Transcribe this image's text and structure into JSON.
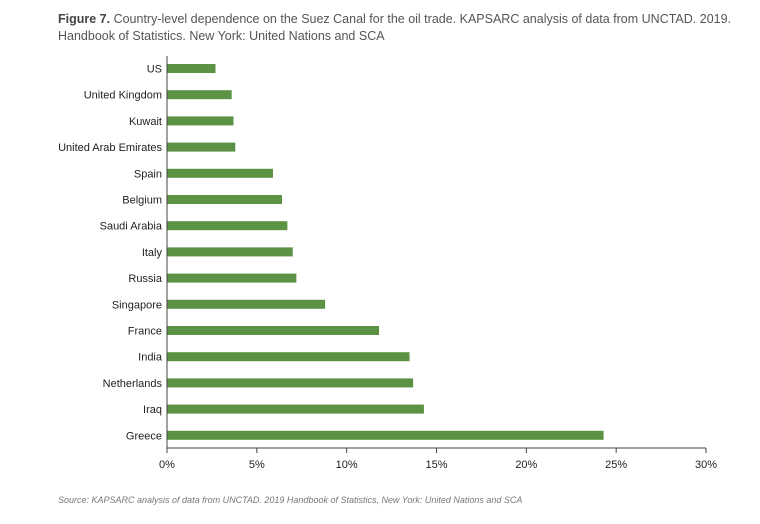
{
  "caption": {
    "label": "Figure 7.",
    "text": " Country-level dependence on the Suez Canal for the oil trade. KAPSARC analysis of data from UNCTAD. 2019. Handbook of Statistics. New York: United Nations and SCA"
  },
  "source_note": "Source:  KAPSARC analysis of data from UNCTAD. 2019 Handbook of Statistics, New York: United Nations and SCA",
  "colors": {
    "bar": "#5b9244",
    "axis": "#444444"
  },
  "chart_data": {
    "type": "bar",
    "orientation": "horizontal",
    "categories": [
      "US",
      "United Kingdom",
      "Kuwait",
      "United Arab Emirates",
      "Spain",
      "Belgium",
      "Saudi Arabia",
      "Italy",
      "Russia",
      "Singapore",
      "France",
      "India",
      "Netherlands",
      "Iraq",
      "Greece"
    ],
    "values": [
      2.7,
      3.6,
      3.7,
      3.8,
      5.9,
      6.4,
      6.7,
      7.0,
      7.2,
      8.8,
      11.8,
      13.5,
      13.7,
      14.3,
      24.3
    ],
    "xlim": [
      0,
      30
    ],
    "xticks": [
      "0%",
      "5%",
      "10%",
      "15%",
      "20%",
      "25%",
      "30%"
    ],
    "grid": false,
    "legend": "none"
  }
}
